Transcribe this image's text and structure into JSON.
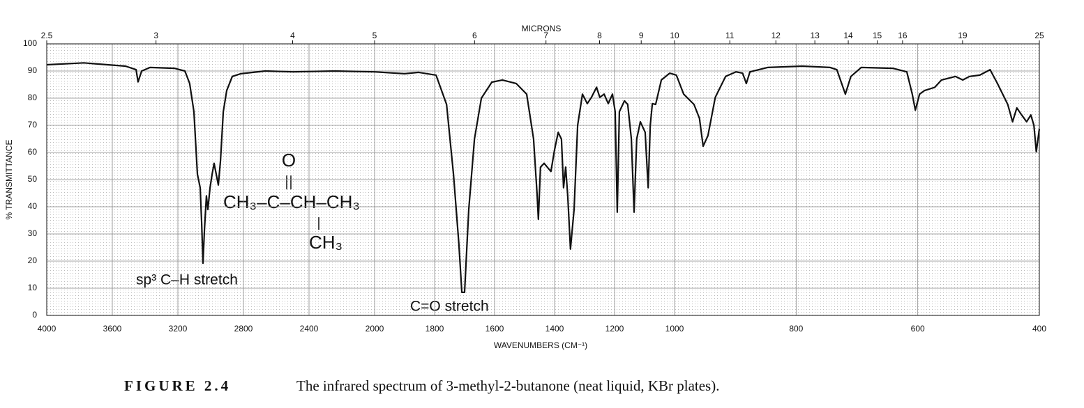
{
  "chart_data": {
    "type": "line",
    "color": "#111111",
    "x2label": "MICRONS",
    "xlabel": "WAVENUMBERS (CM⁻¹)",
    "ylabel": "% TRANSMITTANCE",
    "xlim": [
      4000,
      400
    ],
    "xscale": "piecewise",
    "xscale_breaks": [
      2000,
      1000
    ],
    "xticks": [
      4000,
      3600,
      3200,
      2800,
      2400,
      2000,
      1800,
      1600,
      1400,
      1200,
      1000,
      800,
      600,
      400
    ],
    "x2ticks": [
      2.5,
      3,
      4,
      5,
      6,
      7,
      8,
      9,
      10,
      11,
      12,
      13,
      14,
      15,
      16,
      19,
      25
    ],
    "ylim": [
      0,
      100
    ],
    "yticks": [
      0,
      10,
      20,
      30,
      40,
      50,
      60,
      70,
      80,
      90,
      100
    ],
    "grid": true,
    "x": [
      4000,
      3774,
      3519,
      3455,
      3443,
      3421,
      3370,
      3221,
      3157,
      3128,
      3102,
      3081,
      3064,
      3055,
      3047,
      3038,
      3026,
      3017,
      3004,
      2991,
      2979,
      2966,
      2953,
      2940,
      2923,
      2902,
      2868,
      2817,
      2668,
      2498,
      2243,
      2000,
      1900,
      1853,
      1795,
      1760,
      1737,
      1719,
      1709,
      1700,
      1686,
      1667,
      1644,
      1609,
      1574,
      1528,
      1493,
      1470,
      1458,
      1454,
      1447,
      1435,
      1412,
      1400,
      1388,
      1377,
      1370,
      1363,
      1356,
      1347,
      1335,
      1323,
      1307,
      1291,
      1277,
      1260,
      1249,
      1235,
      1221,
      1207,
      1198,
      1191,
      1184,
      1167,
      1156,
      1144,
      1135,
      1126,
      1114,
      1098,
      1088,
      1081,
      1074,
      1063,
      1044,
      1016,
      997,
      985,
      968,
      959,
      953,
      945,
      933,
      916,
      899,
      888,
      882,
      876,
      847,
      790,
      744,
      733,
      719,
      710,
      693,
      641,
      618,
      609,
      604,
      597,
      589,
      572,
      561,
      538,
      526,
      515,
      498,
      481,
      469,
      452,
      444,
      437,
      429,
      421,
      414,
      409,
      405,
      400
    ],
    "values": [
      92.3,
      93,
      91.8,
      90.5,
      86,
      90,
      91.3,
      91,
      90,
      85.4,
      75,
      52,
      47,
      34,
      19.2,
      31.5,
      44,
      39,
      47,
      52,
      56,
      52,
      48,
      57,
      75,
      82.8,
      88,
      89,
      90,
      89.7,
      90,
      89.7,
      89,
      89.5,
      88.5,
      77.7,
      52,
      26.4,
      8.5,
      8.5,
      39,
      65,
      80,
      85.9,
      86.7,
      85.4,
      81.5,
      65,
      44,
      35.4,
      54.6,
      56,
      53,
      61,
      67.4,
      64.9,
      47,
      54.6,
      44,
      24.4,
      39,
      70,
      81.5,
      78,
      80.3,
      84,
      80.3,
      81.5,
      78,
      81.5,
      75,
      38,
      75,
      79,
      77.7,
      65,
      38,
      65,
      71.3,
      67.4,
      47,
      70,
      78,
      77.7,
      86.7,
      89.2,
      88.5,
      81.5,
      77.7,
      72.6,
      62.3,
      66.2,
      80.3,
      88,
      89.7,
      89.2,
      85.4,
      89.7,
      91.3,
      91.8,
      91.3,
      90.5,
      81.5,
      88,
      91.3,
      91,
      89.7,
      81.5,
      75.6,
      81.5,
      82.8,
      84,
      86.7,
      88,
      86.7,
      88,
      88.5,
      90.5,
      85.4,
      77.7,
      71.3,
      76.4,
      73.8,
      71.3,
      73.8,
      70,
      60.3,
      68.7
    ],
    "annotations": [
      "sp³ C–H stretch",
      "C=O stretch"
    ],
    "structure": [
      "O",
      "CH₃–C–CH–CH₃",
      "CH₃"
    ],
    "caption_label": "FIGURE 2.4",
    "caption": "The infrared spectrum of 3-methyl-2-butanone (neat liquid, KBr plates)."
  }
}
